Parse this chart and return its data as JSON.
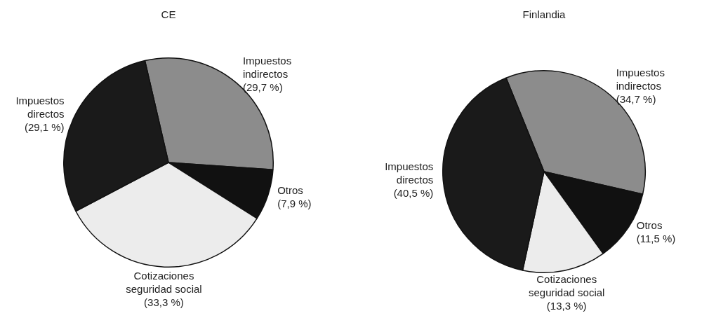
{
  "chart_data": [
    {
      "type": "pie",
      "title": "CE",
      "categories": [
        "Impuestos indirectos",
        "Otros",
        "Cotizaciones seguridad social",
        "Impuestos directos"
      ],
      "values": [
        29.7,
        7.9,
        33.3,
        29.1
      ],
      "value_labels": [
        "(29,7 %)",
        "(7,9 %)",
        "(33,3 %)",
        "(29,1 %)"
      ],
      "colors": [
        "#8c8c8c",
        "#111111",
        "#ececec",
        "#1a1a1a"
      ],
      "legend": false
    },
    {
      "type": "pie",
      "title": "Finlandia",
      "categories": [
        "Impuestos indirectos",
        "Otros",
        "Cotizaciones seguridad social",
        "Impuestos directos"
      ],
      "values": [
        34.7,
        11.5,
        13.3,
        40.5
      ],
      "value_labels": [
        "(34,7 %)",
        "(11,5 %)",
        "(13,3 %)",
        "(40,5 %)"
      ],
      "colors": [
        "#8c8c8c",
        "#111111",
        "#ececec",
        "#1a1a1a"
      ],
      "legend": false
    }
  ]
}
